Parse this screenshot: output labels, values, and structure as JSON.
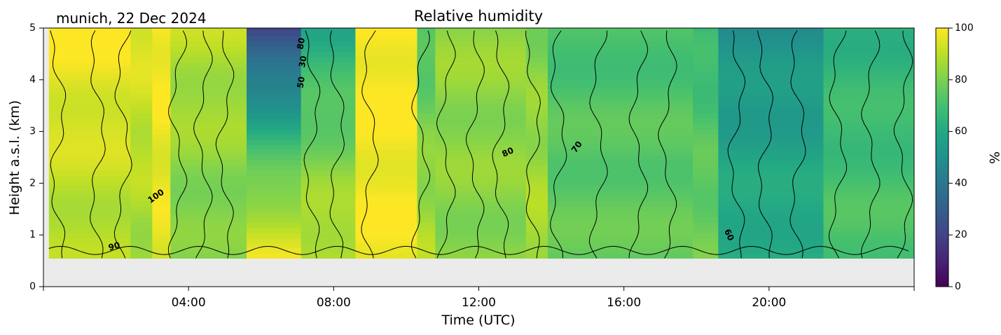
{
  "header": {
    "site_date": "munich, 22 Dec 2024",
    "title": "Relative humidity"
  },
  "chart_data": {
    "type": "heatmap",
    "title": "Relative humidity",
    "xlabel": "Time (UTC)",
    "ylabel": "Height a.s.l. (km)",
    "xlim": [
      0,
      24
    ],
    "ylim": [
      0,
      5
    ],
    "x_ticks": [
      {
        "value": 4,
        "label": "04:00"
      },
      {
        "value": 8,
        "label": "08:00"
      },
      {
        "value": 12,
        "label": "12:00"
      },
      {
        "value": 16,
        "label": "16:00"
      },
      {
        "value": 20,
        "label": "20:00"
      }
    ],
    "y_ticks": [
      0,
      1,
      2,
      3,
      4,
      5
    ],
    "colorbar": {
      "label": "%",
      "colormap": "viridis",
      "range": [
        0,
        100
      ],
      "ticks": [
        0,
        20,
        40,
        60,
        80,
        100
      ]
    },
    "background_color": "#ebebeb",
    "data_bottom_km": 0.55,
    "columns": [
      {
        "t0": 0.15,
        "t1": 2.4,
        "rh_low": 88,
        "rh_high": 100
      },
      {
        "t0": 2.4,
        "t1": 3.0,
        "rh_low": 86,
        "rh_high": 96
      },
      {
        "t0": 3.0,
        "t1": 3.5,
        "rh_low": 96,
        "rh_high": 100
      },
      {
        "t0": 3.5,
        "t1": 5.6,
        "rh_low": 80,
        "rh_high": 90
      },
      {
        "t0": 5.6,
        "t1": 7.1,
        "rh_low": 96,
        "rh_high": 20
      },
      {
        "t0": 7.1,
        "t1": 8.6,
        "rh_low": 90,
        "rh_high": 60
      },
      {
        "t0": 8.6,
        "t1": 10.3,
        "rh_low": 98,
        "rh_high": 100
      },
      {
        "t0": 10.3,
        "t1": 10.8,
        "rh_low": 88,
        "rh_high": 70
      },
      {
        "t0": 10.8,
        "t1": 13.3,
        "rh_low": 82,
        "rh_high": 84
      },
      {
        "t0": 13.3,
        "t1": 13.9,
        "rh_low": 88,
        "rh_high": 80
      },
      {
        "t0": 13.9,
        "t1": 17.9,
        "rh_low": 76,
        "rh_high": 70
      },
      {
        "t0": 17.9,
        "t1": 18.6,
        "rh_low": 78,
        "rh_high": 66
      },
      {
        "t0": 18.6,
        "t1": 21.5,
        "rh_low": 62,
        "rh_high": 50
      },
      {
        "t0": 21.5,
        "t1": 24.0,
        "rh_low": 72,
        "rh_high": 64
      }
    ],
    "contour_labels": [
      {
        "text": "90",
        "t": 1.95,
        "h": 0.78,
        "angle": -15
      },
      {
        "text": "100",
        "t": 3.1,
        "h": 1.75,
        "angle": -35
      },
      {
        "text": "80",
        "t": 7.1,
        "h": 4.7,
        "angle": -80
      },
      {
        "text": "30",
        "t": 7.15,
        "h": 4.35,
        "angle": -80
      },
      {
        "text": "50",
        "t": 7.1,
        "h": 3.95,
        "angle": -80
      },
      {
        "text": "80",
        "t": 12.8,
        "h": 2.6,
        "angle": -25
      },
      {
        "text": "70",
        "t": 14.7,
        "h": 2.7,
        "angle": -55
      },
      {
        "text": "60",
        "t": 18.9,
        "h": 1.0,
        "angle": 65
      }
    ]
  }
}
